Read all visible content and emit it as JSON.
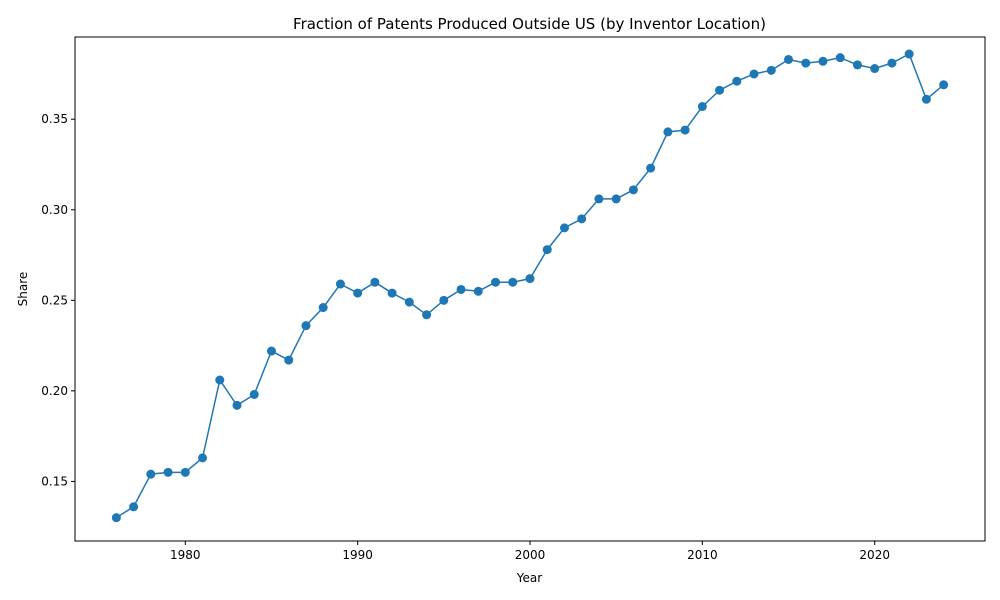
{
  "chart_data": {
    "type": "line",
    "title": "Fraction of Patents Produced Outside US (by Inventor Location)",
    "xlabel": "Year",
    "ylabel": "Share",
    "xlim": [
      1973.6,
      2026.4
    ],
    "ylim": [
      0.1171,
      0.3954
    ],
    "x_ticks": [
      1980,
      1990,
      2000,
      2010,
      2020
    ],
    "y_ticks": [
      0.15,
      0.2,
      0.25,
      0.3,
      0.35
    ],
    "y_tick_labels": [
      "0.15",
      "0.20",
      "0.25",
      "0.30",
      "0.35"
    ],
    "grid": false,
    "legend": "none",
    "line_color": "#1f77b4",
    "series": [
      {
        "x": [
          1976,
          1977,
          1978,
          1979,
          1980,
          1981,
          1982,
          1983,
          1984,
          1985,
          1986,
          1987,
          1988,
          1989,
          1990,
          1991,
          1992,
          1993,
          1994,
          1995,
          1996,
          1997,
          1998,
          1999,
          2000,
          2001,
          2002,
          2003,
          2004,
          2005,
          2006,
          2007,
          2008,
          2009,
          2010,
          2011,
          2012,
          2013,
          2014,
          2015,
          2016,
          2017,
          2018,
          2019,
          2020,
          2021,
          2022,
          2023,
          2024
        ],
        "y": [
          0.13,
          0.136,
          0.154,
          0.155,
          0.155,
          0.163,
          0.206,
          0.192,
          0.198,
          0.222,
          0.217,
          0.236,
          0.246,
          0.259,
          0.254,
          0.26,
          0.254,
          0.249,
          0.242,
          0.25,
          0.256,
          0.255,
          0.26,
          0.26,
          0.262,
          0.278,
          0.29,
          0.295,
          0.306,
          0.306,
          0.311,
          0.323,
          0.343,
          0.344,
          0.357,
          0.366,
          0.371,
          0.375,
          0.377,
          0.383,
          0.381,
          0.382,
          0.384,
          0.38,
          0.378,
          0.381,
          0.386,
          0.361,
          0.369
        ]
      }
    ]
  }
}
